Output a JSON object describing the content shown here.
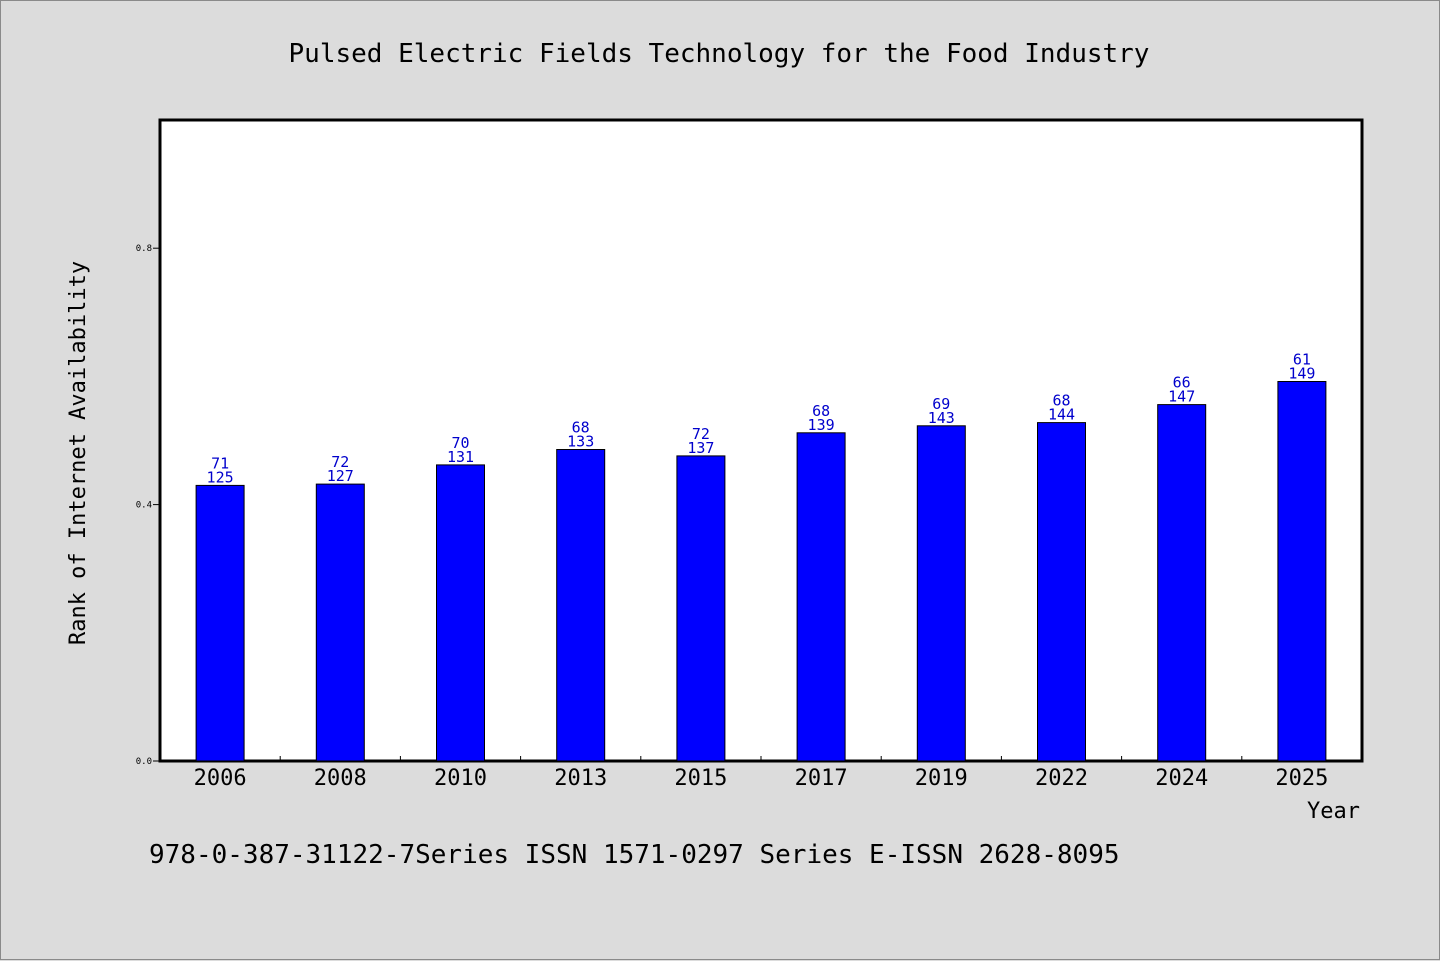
{
  "chart_data": {
    "type": "bar",
    "title": "Pulsed Electric Fields Technology for the Food Industry",
    "xlabel": "Year",
    "ylabel": "Rank of Internet Availability",
    "categories": [
      "2006",
      "2008",
      "2010",
      "2013",
      "2015",
      "2017",
      "2019",
      "2022",
      "2024",
      "2025"
    ],
    "series": [
      {
        "values": [
          0.43,
          0.432,
          0.462,
          0.486,
          0.476,
          0.512,
          0.523,
          0.528,
          0.556,
          0.592
        ]
      }
    ],
    "data_labels_top": [
      "71",
      "72",
      "70",
      "68",
      "72",
      "68",
      "69",
      "68",
      "66",
      "61"
    ],
    "data_labels_bottom": [
      "125",
      "127",
      "131",
      "133",
      "137",
      "139",
      "143",
      "144",
      "147",
      "149"
    ],
    "yticks": [
      "0.0",
      "0.4",
      "0.8"
    ],
    "ytick_values": [
      0.0,
      0.4,
      0.8
    ],
    "ylim": [
      0,
      1.0
    ],
    "grid": false,
    "legend": "none",
    "bar_color": "#0000ff",
    "label_color": "#0000cc"
  },
  "footnote": "978-0-387-31122-7Series ISSN 1571-0297 Series E-ISSN 2628-8095"
}
